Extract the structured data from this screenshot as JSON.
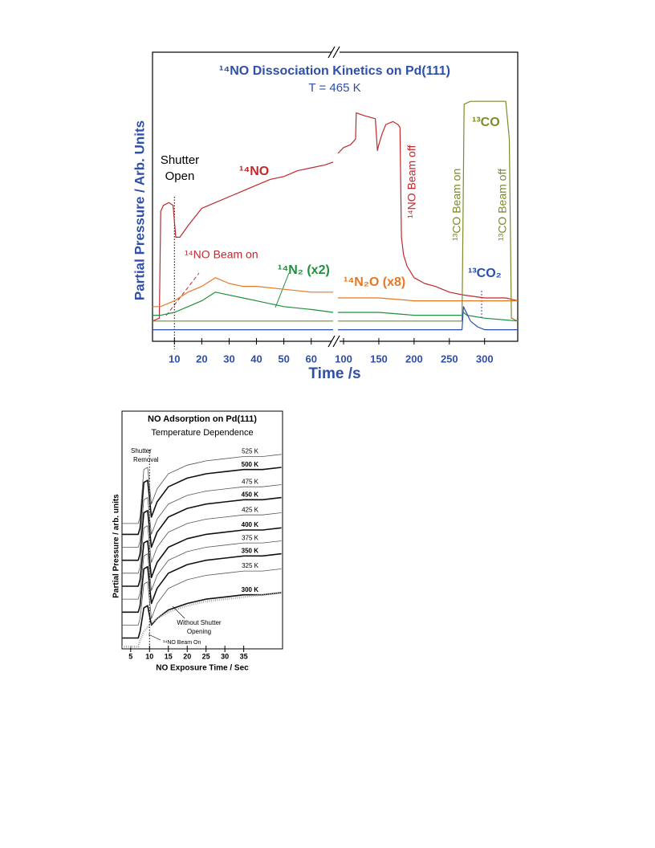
{
  "chart_data": [
    {
      "type": "line",
      "title": "¹⁴NO Dissociation Kinetics on Pd(111)",
      "subtitle": "T = 465 K",
      "xlabel": "Time /s",
      "ylabel": "Partial Pressure / Arb. Units",
      "x_segments": [
        {
          "xlim": [
            2,
            68
          ],
          "xticks": [
            10,
            20,
            30,
            40,
            50,
            60
          ]
        },
        {
          "xlim": [
            92,
            347
          ],
          "xticks": [
            100,
            150,
            200,
            250,
            300
          ]
        }
      ],
      "ylim": [
        0,
        100
      ],
      "marker_x": 10,
      "annotations": [
        "Shutter",
        "Open",
        "¹⁴NO Beam on",
        "¹⁴NO Beam off",
        "¹³CO Beam on",
        "¹³CO Beam off"
      ],
      "series": [
        {
          "name": "¹⁴NO",
          "color": "#c0282d",
          "x": [
            2,
            4.5,
            5,
            6,
            8,
            9.5,
            10.5,
            12,
            15,
            20,
            25,
            30,
            35,
            40,
            45,
            50,
            55,
            60,
            65,
            68,
            80,
            92,
            100,
            110,
            117,
            118,
            130,
            145,
            148,
            150,
            155,
            160,
            170,
            177,
            180,
            182,
            185,
            190,
            200,
            215,
            230,
            250,
            270,
            300,
            330,
            347
          ],
          "values": [
            7,
            8,
            45,
            47,
            48,
            47,
            36,
            36,
            40,
            46,
            48,
            50,
            52,
            54,
            56,
            57,
            59,
            60,
            61,
            62,
            null,
            65,
            67,
            68,
            70,
            79,
            78,
            77,
            66,
            68,
            72,
            75,
            76,
            75,
            74,
            36,
            30,
            26,
            22,
            20,
            19,
            17,
            16,
            15,
            15,
            14
          ]
        },
        {
          "name": "¹⁴N₂O (x8)",
          "color": "#e87722",
          "x": [
            2,
            5,
            10,
            15,
            20,
            25,
            30,
            35,
            40,
            50,
            60,
            68,
            80,
            92,
            150,
            200,
            250,
            300,
            347
          ],
          "values": [
            12,
            12,
            14,
            17,
            19,
            22,
            20,
            19,
            19,
            18,
            17,
            17,
            null,
            15,
            15,
            14,
            14,
            14,
            14
          ]
        },
        {
          "name": "¹⁴N₂ (x2)",
          "color": "#1e8f3c",
          "x": [
            2,
            5,
            10,
            15,
            20,
            25,
            30,
            35,
            40,
            50,
            60,
            68,
            80,
            92,
            150,
            200,
            250,
            268,
            270,
            275,
            300,
            347
          ],
          "values": [
            9,
            9,
            10,
            12,
            14,
            17,
            16,
            15,
            14,
            12,
            11,
            10,
            null,
            10,
            10,
            9,
            9,
            9,
            10,
            9,
            8,
            7
          ]
        },
        {
          "name": "¹³CO",
          "color": "#7f8a2a",
          "x": [
            2,
            68,
            80,
            92,
            268,
            271,
            280,
            300,
            320,
            330,
            335,
            338,
            347
          ],
          "values": [
            7,
            7,
            null,
            7,
            7,
            82,
            83,
            83,
            83,
            83,
            70,
            8,
            7
          ]
        },
        {
          "name": "¹³CO₂",
          "color": "#2a4fb0",
          "x": [
            2,
            68,
            80,
            92,
            268,
            270,
            272,
            280,
            290,
            300,
            347
          ],
          "values": [
            4,
            4,
            null,
            4,
            4,
            12,
            11,
            7,
            5,
            4,
            4
          ]
        }
      ]
    },
    {
      "type": "line",
      "title": "NO Adsorption on Pd(111)",
      "subtitle": "Temperature Dependence",
      "xlabel": "NO Exposure Time / Sec",
      "ylabel": "Partial Pressure / arb. units",
      "xlim": [
        2.7,
        45.3
      ],
      "xticks": [
        5,
        10,
        15,
        20,
        25,
        30,
        35
      ],
      "ylim": [
        0,
        110
      ],
      "marker_x": 10,
      "annotations": [
        "Shutter",
        "Removal",
        "Without Shutter",
        "Opening",
        "¹⁴NO Beam On"
      ],
      "series": [
        {
          "name": "525 K",
          "color": "#555555",
          "line_width": 0.8,
          "x": [
            2.7,
            7,
            7.5,
            8.5,
            9.5,
            10.5,
            12,
            15,
            20,
            25,
            30,
            35,
            40,
            45
          ],
          "values": [
            58,
            58,
            61,
            83,
            84,
            67,
            74,
            81,
            85,
            87,
            88,
            89,
            89,
            90
          ]
        },
        {
          "name": "500 K",
          "color": "#111111",
          "line_width": 1.6,
          "x": [
            2.7,
            7,
            7.5,
            8.5,
            9.5,
            10.5,
            12,
            15,
            20,
            25,
            30,
            35,
            40,
            45
          ],
          "values": [
            53,
            53,
            56,
            77,
            78,
            61,
            68,
            75,
            79,
            81,
            82,
            83,
            83,
            84
          ]
        },
        {
          "name": "475 K",
          "color": "#555555",
          "line_width": 0.8,
          "x": [
            2.7,
            7,
            7.5,
            8.5,
            9.5,
            10.5,
            12,
            15,
            20,
            25,
            30,
            35,
            40,
            45
          ],
          "values": [
            47,
            47,
            50,
            69,
            70,
            53,
            60,
            67,
            71,
            73,
            74,
            75,
            75,
            76
          ]
        },
        {
          "name": "450 K",
          "color": "#111111",
          "line_width": 1.6,
          "x": [
            2.7,
            7,
            7.5,
            8.5,
            9.5,
            10.5,
            12,
            15,
            20,
            25,
            30,
            35,
            40,
            45
          ],
          "values": [
            41,
            41,
            44,
            63,
            64,
            47,
            54,
            61,
            65,
            67,
            68,
            69,
            69,
            70
          ]
        },
        {
          "name": "425 K",
          "color": "#555555",
          "line_width": 0.8,
          "x": [
            2.7,
            7,
            7.5,
            8.5,
            9.5,
            10.5,
            12,
            15,
            20,
            25,
            30,
            35,
            40,
            45
          ],
          "values": [
            35,
            35,
            38,
            56,
            57,
            40,
            47,
            54,
            58,
            60,
            61,
            62,
            62,
            63
          ]
        },
        {
          "name": "400 K",
          "color": "#111111",
          "line_width": 1.6,
          "x": [
            2.7,
            7,
            7.5,
            8.5,
            9.5,
            10.5,
            12,
            15,
            20,
            25,
            30,
            35,
            40,
            45
          ],
          "values": [
            29,
            29,
            32,
            49,
            50,
            33,
            40,
            47,
            51,
            53,
            54,
            55,
            55,
            56
          ]
        },
        {
          "name": "375 K",
          "color": "#555555",
          "line_width": 0.8,
          "x": [
            2.7,
            7,
            7.5,
            8.5,
            9.5,
            10.5,
            12,
            15,
            20,
            25,
            30,
            35,
            40,
            45
          ],
          "values": [
            23,
            23,
            26,
            43,
            44,
            27,
            34,
            41,
            45,
            47,
            48,
            49,
            49,
            50
          ]
        },
        {
          "name": "350 K",
          "color": "#111111",
          "line_width": 1.6,
          "x": [
            2.7,
            7,
            7.5,
            8.5,
            9.5,
            10.5,
            12,
            15,
            20,
            25,
            30,
            35,
            40,
            45
          ],
          "values": [
            17,
            17,
            20,
            37,
            38,
            21,
            28,
            35,
            39,
            41,
            42,
            43,
            43,
            44
          ]
        },
        {
          "name": "325 K",
          "color": "#555555",
          "line_width": 0.8,
          "x": [
            2.7,
            7,
            7.5,
            8.5,
            9.5,
            10.5,
            12,
            15,
            20,
            25,
            30,
            35,
            40,
            45
          ],
          "values": [
            11,
            11,
            14,
            30,
            31,
            14,
            21,
            28,
            32,
            34,
            35,
            36,
            36,
            37
          ]
        },
        {
          "name": "300 K",
          "color": "#111111",
          "line_width": 1.6,
          "x": [
            2.7,
            7,
            7.5,
            8.5,
            9.5,
            10.5,
            12,
            15,
            20,
            25,
            30,
            35,
            40,
            45
          ],
          "values": [
            5,
            5,
            8,
            19,
            20,
            11,
            14,
            18,
            21,
            23,
            24,
            25,
            25,
            26
          ]
        },
        {
          "color": "#aaaaaa",
          "line_width": 2.5,
          "style": "dotted",
          "x": [
            2.7,
            7,
            7.5,
            8.5,
            9.5,
            10.5,
            12,
            15,
            20,
            25,
            30,
            35,
            40,
            45
          ],
          "values": [
            1,
            1,
            4,
            8,
            10,
            12,
            14,
            17,
            20,
            22,
            23,
            24,
            25,
            26
          ]
        }
      ]
    }
  ]
}
